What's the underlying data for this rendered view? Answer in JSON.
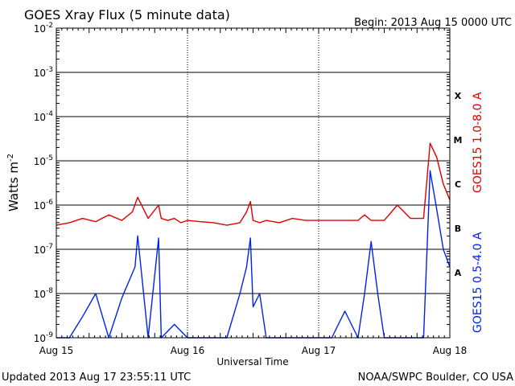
{
  "header": {
    "title": "GOES Xray Flux (5 minute data)",
    "begin": "Begin:  2013 Aug 15 0000 UTC"
  },
  "footer": {
    "updated": "Updated 2013 Aug 17 23:55:11 UTC",
    "credit": "NOAA/SWPC Boulder, CO USA"
  },
  "colors": {
    "long_channel": "#dd0000",
    "short_channel": "#0022ee",
    "axes": "#000000"
  },
  "chart_data": {
    "type": "line",
    "xlabel": "Universal Time",
    "ylabel": "Watts m",
    "ylabel_sup": "-2",
    "yscale": "log",
    "grid": true,
    "xlim_days": [
      0,
      3
    ],
    "ylim": [
      1e-09,
      0.01
    ],
    "x_ticks": [
      "Aug 15",
      "Aug 16",
      "Aug 17",
      "Aug 18"
    ],
    "y_ticks": [
      {
        "value": 1e-09,
        "mantissa": "10",
        "exp": "-9"
      },
      {
        "value": 1e-08,
        "mantissa": "10",
        "exp": "-8"
      },
      {
        "value": 1e-07,
        "mantissa": "10",
        "exp": "-7"
      },
      {
        "value": 1e-06,
        "mantissa": "10",
        "exp": "-6"
      },
      {
        "value": 1e-05,
        "mantissa": "10",
        "exp": "-5"
      },
      {
        "value": 0.0001,
        "mantissa": "10",
        "exp": "-4"
      },
      {
        "value": 0.001,
        "mantissa": "10",
        "exp": "-3"
      },
      {
        "value": 0.01,
        "mantissa": "10",
        "exp": "-2"
      }
    ],
    "flare_classes": [
      {
        "label": "A",
        "value": 3e-08
      },
      {
        "label": "B",
        "value": 3e-07
      },
      {
        "label": "C",
        "value": 3e-06
      },
      {
        "label": "M",
        "value": 3e-05
      },
      {
        "label": "X",
        "value": 0.0003
      }
    ],
    "series": [
      {
        "name": "GOES15 1.0-8.0 A",
        "color": "#dd0000",
        "x": [
          0.0,
          0.1,
          0.2,
          0.3,
          0.4,
          0.5,
          0.58,
          0.62,
          0.7,
          0.78,
          0.8,
          0.85,
          0.9,
          0.95,
          1.0,
          1.1,
          1.2,
          1.3,
          1.4,
          1.45,
          1.48,
          1.5,
          1.55,
          1.6,
          1.7,
          1.8,
          1.9,
          2.0,
          2.1,
          2.2,
          2.3,
          2.35,
          2.4,
          2.45,
          2.5,
          2.6,
          2.7,
          2.8,
          2.85,
          2.9,
          2.95,
          3.0
        ],
        "y": [
          3.5e-07,
          4e-07,
          5e-07,
          4.2e-07,
          6e-07,
          4.5e-07,
          7e-07,
          1.5e-06,
          5e-07,
          1e-06,
          5e-07,
          4.5e-07,
          5e-07,
          4e-07,
          4.5e-07,
          4.2e-07,
          4e-07,
          3.5e-07,
          4e-07,
          7e-07,
          1.2e-06,
          4.5e-07,
          4e-07,
          4.5e-07,
          4e-07,
          5e-07,
          4.5e-07,
          4.5e-07,
          4.5e-07,
          4.5e-07,
          4.5e-07,
          6e-07,
          4.5e-07,
          4.5e-07,
          4.5e-07,
          1e-06,
          5e-07,
          5e-07,
          2.5e-05,
          1.2e-05,
          3e-06,
          1.3e-06
        ]
      },
      {
        "name": "GOES15 0.5-4.0 A",
        "color": "#0022ee",
        "x": [
          0.0,
          0.1,
          0.2,
          0.3,
          0.4,
          0.5,
          0.6,
          0.62,
          0.7,
          0.78,
          0.8,
          0.9,
          1.0,
          1.1,
          1.2,
          1.3,
          1.4,
          1.45,
          1.48,
          1.5,
          1.55,
          1.6,
          1.7,
          1.8,
          1.9,
          2.0,
          2.1,
          2.2,
          2.3,
          2.35,
          2.4,
          2.45,
          2.5,
          2.6,
          2.7,
          2.8,
          2.85,
          2.9,
          2.95,
          3.0
        ],
        "y": [
          1e-09,
          1e-09,
          3e-09,
          1e-08,
          1e-09,
          8e-09,
          4e-08,
          2e-07,
          1e-09,
          1.8e-07,
          1e-09,
          2e-09,
          1e-09,
          1e-09,
          1e-09,
          1e-09,
          1e-08,
          4e-08,
          1.8e-07,
          5e-09,
          1e-08,
          1e-09,
          1e-09,
          1e-09,
          1e-09,
          1e-09,
          1e-09,
          4e-09,
          1e-09,
          1e-08,
          1.5e-07,
          1e-08,
          1e-09,
          1e-09,
          1e-09,
          1e-09,
          6e-06,
          8e-07,
          1e-07,
          4e-08
        ]
      }
    ]
  }
}
